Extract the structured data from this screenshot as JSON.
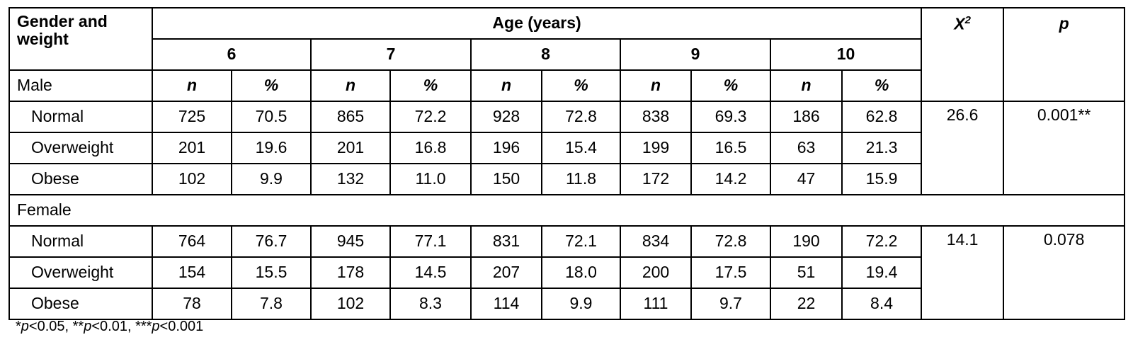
{
  "table": {
    "header": {
      "stub": "Gender and weight",
      "age_group": "Age (years)",
      "chi2_symbol": "X",
      "chi2_exp": "2",
      "p_label": "p",
      "ages": [
        "6",
        "7",
        "8",
        "9",
        "10"
      ],
      "n_label": "n",
      "pct_label": "%"
    },
    "groups": [
      {
        "label": "Male",
        "chi2": "26.6",
        "p": "0.001**",
        "rows": [
          {
            "label": "Normal",
            "cells": [
              "725",
              "70.5",
              "865",
              "72.2",
              "928",
              "72.8",
              "838",
              "69.3",
              "186",
              "62.8"
            ]
          },
          {
            "label": "Overweight",
            "cells": [
              "201",
              "19.6",
              "201",
              "16.8",
              "196",
              "15.4",
              "199",
              "16.5",
              "63",
              "21.3"
            ]
          },
          {
            "label": "Obese",
            "cells": [
              "102",
              "9.9",
              "132",
              "11.0",
              "150",
              "11.8",
              "172",
              "14.2",
              "47",
              "15.9"
            ]
          }
        ]
      },
      {
        "label": "Female",
        "chi2": "14.1",
        "p": "0.078",
        "rows": [
          {
            "label": "Normal",
            "cells": [
              "764",
              "76.7",
              "945",
              "77.1",
              "831",
              "72.1",
              "834",
              "72.8",
              "190",
              "72.2"
            ]
          },
          {
            "label": "Overweight",
            "cells": [
              "154",
              "15.5",
              "178",
              "14.5",
              "207",
              "18.0",
              "200",
              "17.5",
              "51",
              "19.4"
            ]
          },
          {
            "label": "Obese",
            "cells": [
              "78",
              "7.8",
              "102",
              "8.3",
              "114",
              "9.9",
              "111",
              "9.7",
              "22",
              "8.4"
            ]
          }
        ]
      }
    ]
  },
  "footnote": {
    "s1": "*",
    "p1": "p",
    "t1": "<0.05, ",
    "s2": "**",
    "p2": "p",
    "t2": "<0.01, ",
    "s3": "***",
    "p3": "p",
    "t3": "<0.001"
  }
}
